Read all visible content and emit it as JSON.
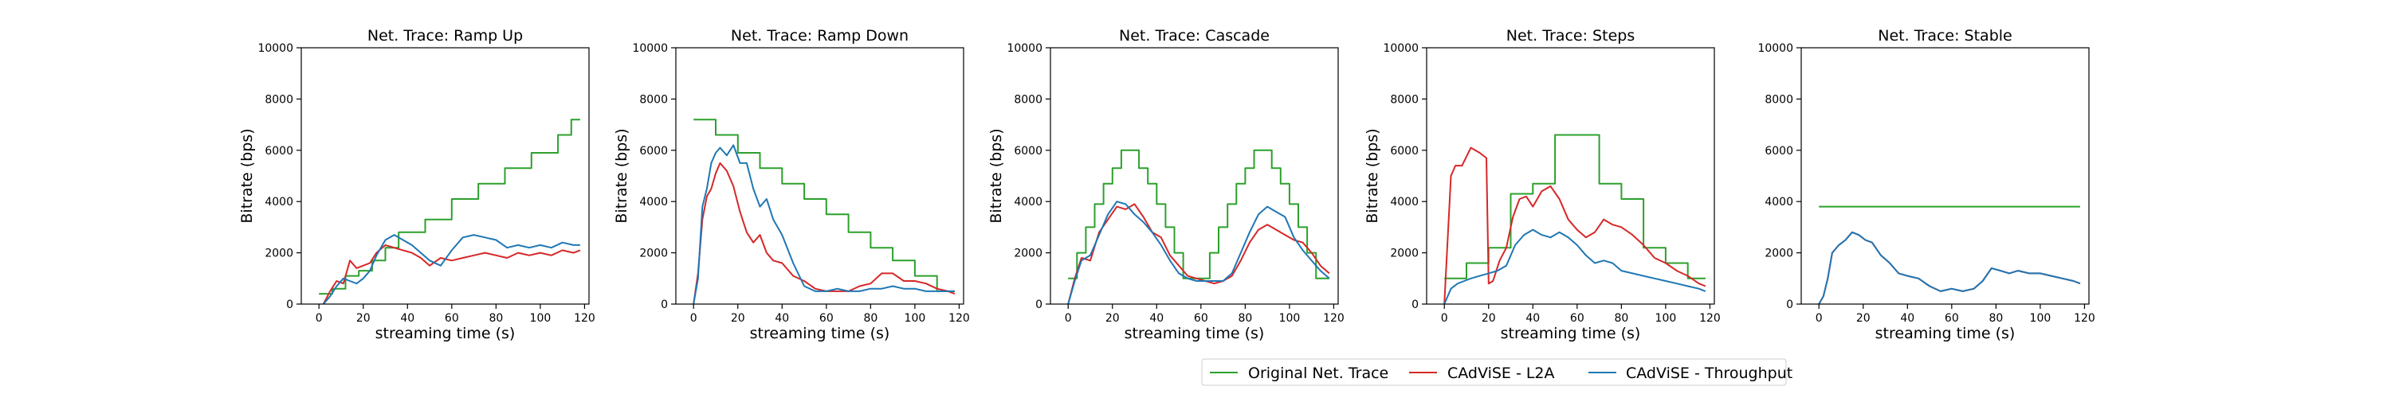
{
  "chart_data": [
    {
      "type": "line",
      "title": "Net. Trace: Ramp Up",
      "xlabel": "streaming time (s)",
      "ylabel": "Bitrate (bps)",
      "xlim": [
        -8,
        122
      ],
      "ylim": [
        0,
        10000
      ],
      "xticks": [
        0,
        20,
        40,
        60,
        80,
        100,
        120
      ],
      "yticks": [
        0,
        2000,
        4000,
        6000,
        8000,
        10000
      ],
      "series": [
        {
          "name": "Original Net. Trace",
          "color": "#2ca02c",
          "step": true,
          "x": [
            0,
            6,
            12,
            18,
            24,
            30,
            36,
            42,
            48,
            54,
            60,
            66,
            72,
            78,
            84,
            90,
            96,
            102,
            108,
            114,
            118
          ],
          "y": [
            400,
            600,
            1100,
            1300,
            1700,
            2200,
            2800,
            2800,
            3300,
            3300,
            4100,
            4100,
            4700,
            4700,
            5300,
            5300,
            5900,
            5900,
            6600,
            7200,
            7200
          ]
        },
        {
          "name": "CAdViSE - L2A",
          "color": "#d62728",
          "x": [
            2,
            5,
            8,
            11,
            14,
            17,
            20,
            23,
            26,
            30,
            34,
            38,
            42,
            46,
            50,
            55,
            60,
            65,
            70,
            75,
            80,
            85,
            90,
            95,
            100,
            105,
            110,
            115,
            118
          ],
          "y": [
            0,
            500,
            900,
            800,
            1700,
            1400,
            1500,
            1600,
            2000,
            2300,
            2200,
            2100,
            2000,
            1800,
            1500,
            1800,
            1700,
            1800,
            1900,
            2000,
            1900,
            1800,
            2000,
            1900,
            2000,
            1900,
            2100,
            2000,
            2100
          ]
        },
        {
          "name": "CAdViSE - Throughput",
          "color": "#1f77b4",
          "x": [
            2,
            5,
            8,
            11,
            14,
            17,
            20,
            23,
            26,
            30,
            34,
            38,
            42,
            46,
            50,
            55,
            60,
            65,
            70,
            75,
            80,
            85,
            90,
            95,
            100,
            105,
            110,
            115,
            118
          ],
          "y": [
            0,
            300,
            700,
            1000,
            900,
            800,
            1000,
            1300,
            1900,
            2500,
            2700,
            2500,
            2300,
            2000,
            1700,
            1500,
            2100,
            2600,
            2700,
            2600,
            2500,
            2200,
            2300,
            2200,
            2300,
            2200,
            2400,
            2300,
            2300
          ]
        }
      ]
    },
    {
      "type": "line",
      "title": "Net. Trace: Ramp Down",
      "xlabel": "streaming time (s)",
      "ylabel": "Bitrate (bps)",
      "xlim": [
        -8,
        122
      ],
      "ylim": [
        0,
        10000
      ],
      "xticks": [
        0,
        20,
        40,
        60,
        80,
        100,
        120
      ],
      "yticks": [
        0,
        2000,
        4000,
        6000,
        8000,
        10000
      ],
      "series": [
        {
          "name": "Original Net. Trace",
          "color": "#2ca02c",
          "step": true,
          "x": [
            0,
            10,
            20,
            30,
            40,
            50,
            60,
            70,
            80,
            90,
            100,
            110,
            118
          ],
          "y": [
            7200,
            6600,
            5900,
            5300,
            4700,
            4100,
            3500,
            2800,
            2200,
            1700,
            1100,
            500,
            500
          ]
        },
        {
          "name": "CAdViSE - L2A",
          "color": "#d62728",
          "x": [
            0,
            2,
            4,
            6,
            8,
            10,
            12,
            15,
            18,
            21,
            24,
            27,
            30,
            33,
            36,
            40,
            45,
            50,
            55,
            60,
            65,
            70,
            75,
            80,
            85,
            90,
            95,
            100,
            105,
            110,
            115,
            118
          ],
          "y": [
            0,
            1200,
            3300,
            4200,
            4500,
            5100,
            5500,
            5200,
            4600,
            3600,
            2800,
            2400,
            2700,
            2000,
            1700,
            1600,
            1100,
            900,
            600,
            500,
            500,
            500,
            700,
            800,
            1200,
            1200,
            900,
            900,
            800,
            600,
            500,
            400
          ]
        },
        {
          "name": "CAdViSE - Throughput",
          "color": "#1f77b4",
          "x": [
            0,
            2,
            4,
            6,
            8,
            10,
            12,
            15,
            18,
            21,
            24,
            27,
            30,
            33,
            36,
            40,
            45,
            50,
            55,
            60,
            65,
            70,
            75,
            80,
            85,
            90,
            95,
            100,
            105,
            110,
            115,
            118
          ],
          "y": [
            0,
            1000,
            3800,
            4500,
            5500,
            5900,
            6100,
            5800,
            6200,
            5500,
            5500,
            4500,
            3800,
            4100,
            3300,
            2700,
            1600,
            700,
            500,
            500,
            600,
            500,
            500,
            600,
            600,
            700,
            600,
            600,
            500,
            500,
            500,
            500
          ]
        }
      ]
    },
    {
      "type": "line",
      "title": "Net. Trace: Cascade",
      "xlabel": "streaming time (s)",
      "ylabel": "Bitrate (bps)",
      "xlim": [
        -8,
        122
      ],
      "ylim": [
        0,
        10000
      ],
      "xticks": [
        0,
        20,
        40,
        60,
        80,
        100,
        120
      ],
      "yticks": [
        0,
        2000,
        4000,
        6000,
        8000,
        10000
      ],
      "series": [
        {
          "name": "Original Net. Trace",
          "color": "#2ca02c",
          "step": true,
          "x": [
            0,
            4,
            8,
            12,
            16,
            20,
            24,
            32,
            36,
            40,
            44,
            48,
            52,
            60,
            64,
            68,
            72,
            76,
            80,
            84,
            92,
            96,
            100,
            104,
            108,
            112,
            118
          ],
          "y": [
            1000,
            2000,
            3000,
            3900,
            4700,
            5300,
            6000,
            5300,
            4700,
            3900,
            3000,
            2000,
            1000,
            1000,
            2000,
            3000,
            3900,
            4700,
            5300,
            6000,
            5300,
            4700,
            3900,
            3000,
            2000,
            1000,
            1000
          ]
        },
        {
          "name": "CAdViSE - L2A",
          "color": "#d62728",
          "x": [
            0,
            3,
            6,
            10,
            14,
            18,
            22,
            26,
            30,
            34,
            38,
            42,
            46,
            50,
            54,
            58,
            62,
            66,
            70,
            74,
            78,
            82,
            86,
            90,
            94,
            98,
            102,
            106,
            110,
            114,
            118
          ],
          "y": [
            0,
            1000,
            1800,
            1700,
            2800,
            3300,
            3800,
            3700,
            3900,
            3400,
            2800,
            2600,
            1900,
            1500,
            1100,
            1000,
            900,
            800,
            900,
            1100,
            1700,
            2400,
            2900,
            3100,
            2900,
            2700,
            2500,
            2400,
            2000,
            1500,
            1200
          ]
        },
        {
          "name": "CAdViSE - Throughput",
          "color": "#1f77b4",
          "x": [
            0,
            3,
            6,
            10,
            14,
            18,
            22,
            26,
            30,
            34,
            38,
            42,
            46,
            50,
            54,
            58,
            62,
            66,
            70,
            74,
            78,
            82,
            86,
            90,
            94,
            98,
            102,
            106,
            110,
            114,
            118
          ],
          "y": [
            0,
            900,
            1700,
            1900,
            2700,
            3500,
            4000,
            3900,
            3500,
            3200,
            2800,
            2300,
            1700,
            1200,
            1000,
            900,
            900,
            900,
            900,
            1200,
            2000,
            2800,
            3500,
            3800,
            3600,
            3400,
            2600,
            2100,
            1700,
            1300,
            1000
          ]
        }
      ]
    },
    {
      "type": "line",
      "title": "Net. Trace: Steps",
      "xlabel": "streaming time (s)",
      "ylabel": "Bitrate (bps)",
      "xlim": [
        -8,
        122
      ],
      "ylim": [
        0,
        10000
      ],
      "xticks": [
        0,
        20,
        40,
        60,
        80,
        100,
        120
      ],
      "yticks": [
        0,
        2000,
        4000,
        6000,
        8000,
        10000
      ],
      "series": [
        {
          "name": "Original Net. Trace",
          "color": "#2ca02c",
          "step": true,
          "x": [
            0,
            10,
            20,
            30,
            40,
            50,
            60,
            70,
            80,
            90,
            100,
            110,
            118
          ],
          "y": [
            1000,
            1600,
            2200,
            4300,
            4700,
            6600,
            6600,
            4700,
            4100,
            2200,
            1600,
            1000,
            1000
          ]
        },
        {
          "name": "CAdViSE - L2A",
          "color": "#d62728",
          "x": [
            0,
            3,
            5,
            8,
            12,
            16,
            19,
            20,
            22,
            25,
            28,
            31,
            34,
            37,
            40,
            44,
            48,
            52,
            56,
            60,
            64,
            68,
            72,
            76,
            80,
            85,
            90,
            95,
            100,
            105,
            110,
            115,
            118
          ],
          "y": [
            0,
            5000,
            5400,
            5400,
            6100,
            5900,
            5700,
            800,
            900,
            1700,
            2200,
            3400,
            4100,
            4200,
            3800,
            4400,
            4600,
            4100,
            3300,
            2900,
            2600,
            2800,
            3300,
            3100,
            3000,
            2700,
            2300,
            1800,
            1600,
            1300,
            1100,
            800,
            700
          ]
        },
        {
          "name": "CAdViSE - Throughput",
          "color": "#1f77b4",
          "x": [
            0,
            3,
            6,
            9,
            12,
            16,
            20,
            24,
            28,
            32,
            36,
            40,
            44,
            48,
            52,
            56,
            60,
            64,
            68,
            72,
            76,
            80,
            85,
            90,
            95,
            100,
            105,
            110,
            115,
            118
          ],
          "y": [
            0,
            600,
            800,
            900,
            1000,
            1100,
            1200,
            1300,
            1500,
            2300,
            2700,
            2900,
            2700,
            2600,
            2800,
            2600,
            2300,
            1900,
            1600,
            1700,
            1600,
            1300,
            1200,
            1100,
            1000,
            900,
            800,
            700,
            600,
            500
          ]
        }
      ]
    },
    {
      "type": "line",
      "title": "Net. Trace: Stable",
      "xlabel": "streaming time (s)",
      "ylabel": "",
      "xlim": [
        -8,
        122
      ],
      "ylim": [
        0,
        10000
      ],
      "xticks": [
        0,
        20,
        40,
        60,
        80,
        100,
        120
      ],
      "yticks": [
        0,
        2000,
        4000,
        6000,
        8000,
        10000
      ],
      "series": [
        {
          "name": "Original Net. Trace",
          "color": "#2ca02c",
          "step": true,
          "x": [
            0,
            118
          ],
          "y": [
            3800,
            3800
          ]
        },
        {
          "name": "CAdViSE - L2A",
          "color": "#d62728",
          "x": [
            0,
            2,
            4,
            6,
            9,
            12,
            15,
            18,
            21,
            24,
            28,
            32,
            36,
            40,
            45,
            50,
            55,
            60,
            65,
            70,
            74,
            78,
            82,
            86,
            90,
            95,
            100,
            105,
            110,
            115,
            118
          ],
          "y": [
            0,
            300,
            1000,
            2000,
            2300,
            2500,
            2800,
            2700,
            2500,
            2400,
            1900,
            1600,
            1200,
            1100,
            1000,
            700,
            500,
            600,
            500,
            600,
            900,
            1400,
            1300,
            1200,
            1300,
            1200,
            1200,
            1100,
            1000,
            900,
            800
          ]
        },
        {
          "name": "CAdViSE - Throughput",
          "color": "#1f77b4",
          "x": [
            0,
            2,
            4,
            6,
            9,
            12,
            15,
            18,
            21,
            24,
            28,
            32,
            36,
            40,
            45,
            50,
            55,
            60,
            65,
            70,
            74,
            78,
            82,
            86,
            90,
            95,
            100,
            105,
            110,
            115,
            118
          ],
          "y": [
            0,
            300,
            1000,
            2000,
            2300,
            2500,
            2800,
            2700,
            2500,
            2400,
            1900,
            1600,
            1200,
            1100,
            1000,
            700,
            500,
            600,
            500,
            600,
            900,
            1400,
            1300,
            1200,
            1300,
            1200,
            1200,
            1100,
            1000,
            900,
            800
          ]
        }
      ]
    }
  ],
  "legend": {
    "placement": "bottom-center",
    "entries": [
      {
        "label": "Original Net. Trace",
        "color": "#2ca02c"
      },
      {
        "label": "CAdViSE - L2A",
        "color": "#d62728"
      },
      {
        "label": "CAdViSE - Throughput",
        "color": "#1f77b4"
      }
    ]
  }
}
